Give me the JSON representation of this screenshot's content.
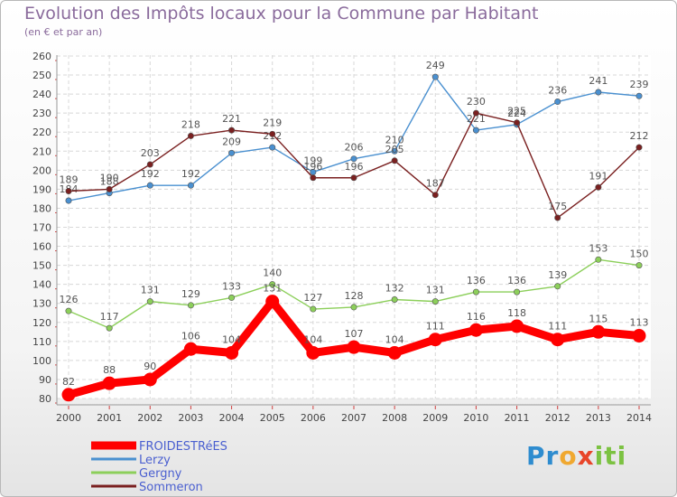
{
  "title": "Evolution des Impôts locaux pour la Commune par Habitant",
  "subtitle": "(en € et par an)",
  "logo": {
    "text": "Proxiti",
    "letters": [
      "P",
      "r",
      "o",
      "x",
      "i",
      "t",
      "i"
    ],
    "colors": [
      "#2e8ccf",
      "#2e8ccf",
      "#f0a830",
      "#e8452a",
      "#7cc242",
      "#7cc242",
      "#7cc242"
    ]
  },
  "chart_data": {
    "type": "line",
    "title": "Evolution des Impôts locaux pour la Commune par Habitant",
    "ylabel": "(en € et par an)",
    "xlabel": "",
    "categories": [
      "2000",
      "2001",
      "2002",
      "2003",
      "2004",
      "2005",
      "2006",
      "2007",
      "2008",
      "2009",
      "2010",
      "2011",
      "2012",
      "2013",
      "2014"
    ],
    "ylim": [
      80,
      260
    ],
    "ystep": 10,
    "grid": true,
    "legend_position": "bottom-left",
    "series": [
      {
        "name": "FROIDESTRéES",
        "color": "#ff0000",
        "thick": true,
        "values": [
          82,
          88,
          90,
          106,
          104,
          131,
          104,
          107,
          104,
          111,
          116,
          118,
          111,
          115,
          113
        ],
        "labels": [
          "82",
          "88",
          "90",
          "106",
          "104",
          "131",
          "104",
          "107",
          "104",
          "111",
          "116",
          "118",
          "111",
          "115",
          "113"
        ]
      },
      {
        "name": "Lerzy",
        "color": "#4a90d0",
        "thick": false,
        "values": [
          184,
          188,
          192,
          192,
          209,
          212,
          199,
          206,
          210,
          249,
          221,
          224,
          236,
          241,
          239
        ],
        "labels": [
          "184",
          "188",
          "192",
          "192",
          "209",
          "212",
          "199",
          "206",
          "210",
          "249",
          "221",
          "224",
          "236",
          "241",
          "239"
        ]
      },
      {
        "name": "Gergny",
        "color": "#8ccf5a",
        "thick": false,
        "values": [
          126,
          117,
          131,
          129,
          133,
          140,
          127,
          128,
          132,
          131,
          136,
          136,
          139,
          153,
          150
        ],
        "labels": [
          "126",
          "117",
          "131",
          "129",
          "133",
          "140",
          "127",
          "128",
          "132",
          "131",
          "136",
          "136",
          "139",
          "153",
          "150"
        ]
      },
      {
        "name": "Sommeron",
        "color": "#7a2020",
        "thick": false,
        "values": [
          189,
          190,
          203,
          218,
          221,
          219,
          196,
          196,
          205,
          187,
          230,
          225,
          175,
          191,
          212
        ],
        "labels": [
          "189",
          "190",
          "203",
          "218",
          "221",
          "219",
          "196",
          "196",
          "205",
          "187",
          "230",
          "225",
          "175",
          "191",
          "212"
        ]
      }
    ]
  }
}
